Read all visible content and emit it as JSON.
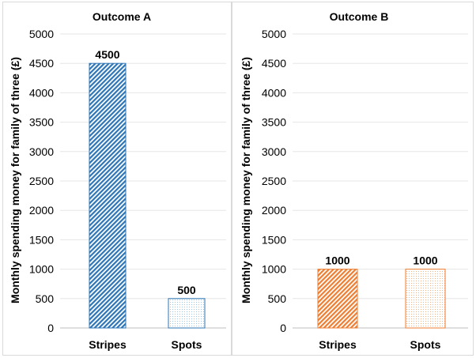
{
  "chart_data": [
    {
      "type": "bar",
      "title": "Outcome A",
      "ylabel": "Monthly spending money for family of three (£)",
      "categories": [
        "Stripes",
        "Spots"
      ],
      "values": [
        4500,
        500
      ],
      "data_labels": [
        "4500",
        "500"
      ],
      "patterns": [
        "stripes",
        "dots"
      ],
      "color": "#2e75b6",
      "ylim": [
        0,
        5000
      ],
      "yticks": [
        "0",
        "500",
        "1000",
        "1500",
        "2000",
        "2500",
        "3000",
        "3500",
        "4000",
        "4500",
        "5000"
      ],
      "grid": true
    },
    {
      "type": "bar",
      "title": "Outcome B",
      "ylabel": "Monthly spending money for family of three (£)",
      "categories": [
        "Stripes",
        "Spots"
      ],
      "values": [
        1000,
        1000
      ],
      "data_labels": [
        "1000",
        "1000"
      ],
      "patterns": [
        "stripes",
        "dots"
      ],
      "color": "#ed7d31",
      "ylim": [
        0,
        5000
      ],
      "yticks": [
        "0",
        "500",
        "1000",
        "1500",
        "2000",
        "2500",
        "3000",
        "3500",
        "4000",
        "4500",
        "5000"
      ],
      "grid": true
    }
  ]
}
